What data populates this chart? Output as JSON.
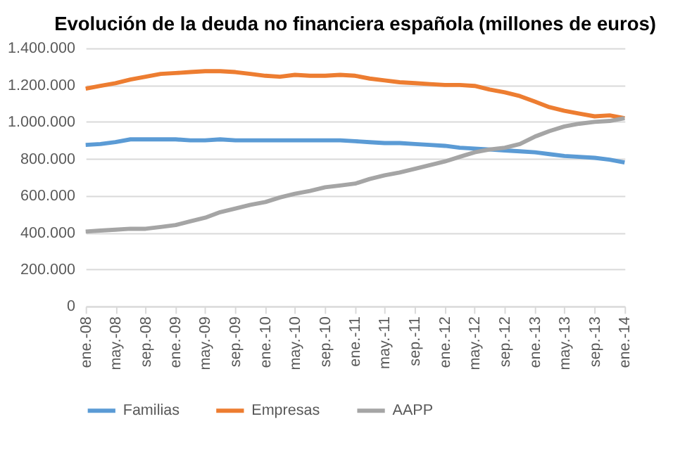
{
  "chart_data": {
    "type": "line",
    "title": "Evolución de la deuda no financiera española (millones de euros)",
    "x": [
      "2008-01",
      "2008-03",
      "2008-05",
      "2008-07",
      "2008-09",
      "2008-11",
      "2009-01",
      "2009-03",
      "2009-05",
      "2009-07",
      "2009-09",
      "2009-11",
      "2010-01",
      "2010-03",
      "2010-05",
      "2010-07",
      "2010-09",
      "2010-11",
      "2011-01",
      "2011-03",
      "2011-05",
      "2011-07",
      "2011-09",
      "2011-11",
      "2012-01",
      "2012-03",
      "2012-05",
      "2012-07",
      "2012-09",
      "2012-11",
      "2013-01",
      "2013-03",
      "2013-05",
      "2013-07",
      "2013-09",
      "2013-11",
      "2014-01"
    ],
    "series": [
      {
        "name": "Familias",
        "color": "#5b9bd5",
        "values": [
          875000,
          880000,
          890000,
          905000,
          905000,
          905000,
          905000,
          900000,
          900000,
          905000,
          900000,
          900000,
          900000,
          900000,
          900000,
          900000,
          900000,
          900000,
          895000,
          890000,
          885000,
          885000,
          880000,
          875000,
          870000,
          860000,
          855000,
          850000,
          845000,
          840000,
          835000,
          825000,
          815000,
          810000,
          805000,
          795000,
          780000
        ]
      },
      {
        "name": "Empresas",
        "color": "#ed7d31",
        "values": [
          1180000,
          1195000,
          1210000,
          1230000,
          1245000,
          1260000,
          1265000,
          1270000,
          1275000,
          1275000,
          1270000,
          1260000,
          1250000,
          1245000,
          1255000,
          1250000,
          1250000,
          1255000,
          1250000,
          1235000,
          1225000,
          1215000,
          1210000,
          1205000,
          1200000,
          1200000,
          1195000,
          1175000,
          1160000,
          1140000,
          1110000,
          1080000,
          1060000,
          1045000,
          1030000,
          1035000,
          1020000
        ]
      },
      {
        "name": "AAPP",
        "color": "#a5a5a5",
        "values": [
          405000,
          410000,
          415000,
          420000,
          420000,
          430000,
          440000,
          460000,
          480000,
          510000,
          530000,
          550000,
          565000,
          590000,
          610000,
          625000,
          645000,
          655000,
          665000,
          690000,
          710000,
          725000,
          745000,
          765000,
          785000,
          810000,
          835000,
          850000,
          860000,
          880000,
          920000,
          950000,
          975000,
          990000,
          1000000,
          1005000,
          1020000
        ]
      }
    ],
    "xlim": [
      "2008-01",
      "2014-01"
    ],
    "xticks": [
      {
        "value": "2008-01",
        "label": "ene.-08"
      },
      {
        "value": "2008-05",
        "label": "may.-08"
      },
      {
        "value": "2008-09",
        "label": "sep.-08"
      },
      {
        "value": "2009-01",
        "label": "ene.-09"
      },
      {
        "value": "2009-05",
        "label": "may.-09"
      },
      {
        "value": "2009-09",
        "label": "sep.-09"
      },
      {
        "value": "2010-01",
        "label": "ene.-10"
      },
      {
        "value": "2010-05",
        "label": "may.-10"
      },
      {
        "value": "2010-09",
        "label": "sep.-10"
      },
      {
        "value": "2011-01",
        "label": "ene.-11"
      },
      {
        "value": "2011-05",
        "label": "may.-11"
      },
      {
        "value": "2011-09",
        "label": "sep.-11"
      },
      {
        "value": "2012-01",
        "label": "ene.-12"
      },
      {
        "value": "2012-05",
        "label": "may.-12"
      },
      {
        "value": "2012-09",
        "label": "sep.-12"
      },
      {
        "value": "2013-01",
        "label": "ene.-13"
      },
      {
        "value": "2013-05",
        "label": "may.-13"
      },
      {
        "value": "2013-09",
        "label": "sep.-13"
      },
      {
        "value": "2014-01",
        "label": "ene.-14"
      }
    ],
    "ylim": [
      0,
      1400000
    ],
    "yticks": [
      {
        "value": 0,
        "label": "0"
      },
      {
        "value": 200000,
        "label": "200.000"
      },
      {
        "value": 400000,
        "label": "400.000"
      },
      {
        "value": 600000,
        "label": "600.000"
      },
      {
        "value": 800000,
        "label": "800.000"
      },
      {
        "value": 1000000,
        "label": "1.000.000"
      },
      {
        "value": 1200000,
        "label": "1.200.000"
      },
      {
        "value": 1400000,
        "label": "1.400.000"
      }
    ],
    "grid": "y",
    "legend": "bottom",
    "marker": "none",
    "line_style": "solid"
  }
}
